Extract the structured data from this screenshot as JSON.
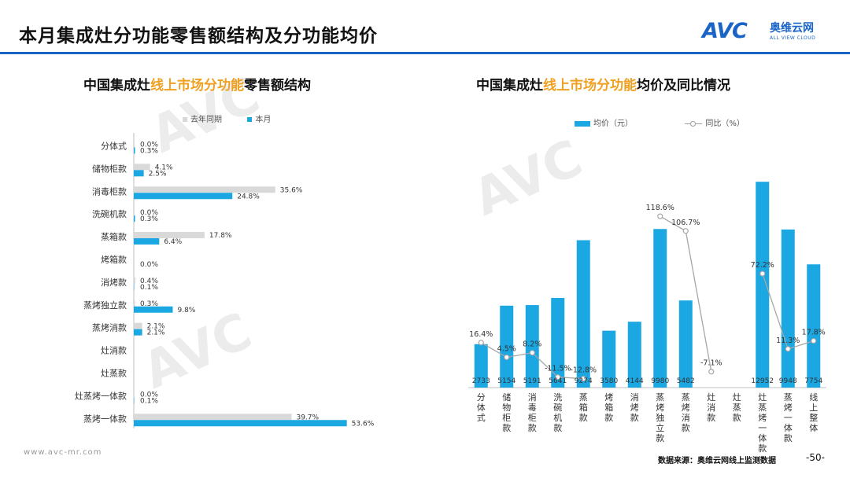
{
  "page": {
    "title": "本月集成灶分功能零售额结构及分功能均价",
    "brand_mark": "AVC",
    "brand_cn": "奥维云网",
    "brand_en": "ALL VIEW CLOUD",
    "footer_url": "www.avc-mr.com",
    "source": "数据来源：奥维云网线上监测数据",
    "page_number": "-50-",
    "colors": {
      "accent": "#1aa7e2",
      "gray_bar": "#d9d9d9",
      "highlight": "#f0a020",
      "brand": "#1a64c8"
    }
  },
  "left": {
    "title_pre": "中国集成灶",
    "title_hl": "线上市场分功能",
    "title_post": "零售额结构",
    "legend_prev": "去年同期",
    "legend_cur": "本月"
  },
  "right": {
    "title_pre": "中国集成灶",
    "title_hl": "线上市场分功能",
    "title_post": "均价及同比情况",
    "legend_bar": "均价（元）",
    "legend_line": "同比（%）"
  },
  "chart_data": [
    {
      "type": "bar",
      "orientation": "horizontal",
      "title": "中国集成灶线上市场分功能零售额结构",
      "categories": [
        "分体式",
        "储物柜款",
        "消毒柜款",
        "洗碗机款",
        "蒸箱款",
        "烤箱款",
        "消烤款",
        "蒸烤独立款",
        "蒸烤消款",
        "灶消款",
        "灶蒸款",
        "灶蒸烤一体款",
        "蒸烤一体款"
      ],
      "series": [
        {
          "name": "去年同期",
          "values": [
            0.0,
            4.1,
            35.6,
            0.0,
            17.8,
            null,
            0.4,
            0.3,
            2.1,
            null,
            null,
            0.0,
            39.7
          ],
          "labels": [
            "0.0%",
            "4.1%",
            "35.6%",
            "0.0%",
            "17.8%",
            "",
            "0.4%",
            "0.3%",
            "2.1%",
            "",
            "",
            "0.0%",
            "39.7%"
          ]
        },
        {
          "name": "本月",
          "values": [
            0.3,
            2.5,
            24.8,
            0.3,
            6.4,
            0.0,
            0.1,
            9.8,
            2.1,
            null,
            null,
            0.1,
            53.6
          ],
          "labels": [
            "0.3%",
            "2.5%",
            "24.8%",
            "0.3%",
            "6.4%",
            "0.0%",
            "0.1%",
            "9.8%",
            "2.1%",
            "",
            "",
            "0.1%",
            "53.6%"
          ]
        }
      ],
      "xlim": [
        0,
        60
      ]
    },
    {
      "type": "bar",
      "title": "中国集成灶线上市场分功能均价及同比情况",
      "categories": [
        "分体式",
        "储物柜款",
        "消毒柜款",
        "洗碗机款",
        "蒸箱款",
        "烤箱款",
        "消烤款",
        "蒸烤独立款",
        "蒸烤消款",
        "灶消款",
        "灶蒸款",
        "灶蒸烤一体款",
        "蒸烤一体款",
        "线上整体"
      ],
      "series": [
        {
          "name": "均价（元）",
          "type": "bar",
          "values": [
            2733,
            5154,
            5191,
            5641,
            9274,
            3580,
            4144,
            9980,
            5482,
            null,
            null,
            12952,
            9948,
            7754
          ],
          "labels": [
            "2733",
            "5154",
            "5191",
            "5641",
            "9274",
            "3580",
            "4144",
            "9980",
            "5482",
            "",
            "",
            "12952",
            "9948",
            "7754"
          ]
        },
        {
          "name": "同比（%）",
          "type": "line",
          "values": [
            16.4,
            4.5,
            8.2,
            -11.5,
            -12.8,
            null,
            null,
            118.6,
            106.7,
            -7.1,
            null,
            72.2,
            11.3,
            17.8
          ],
          "labels": [
            "16.4%",
            "4.5%",
            "8.2%",
            "-11.5%",
            "-12.8%",
            "",
            "",
            "118.6%",
            "106.7%",
            "-7.1%",
            "",
            "72.2%",
            "11.3%",
            "17.8%"
          ]
        }
      ],
      "ylim": [
        0,
        14000
      ],
      "y2lim": [
        -20,
        160
      ]
    }
  ]
}
